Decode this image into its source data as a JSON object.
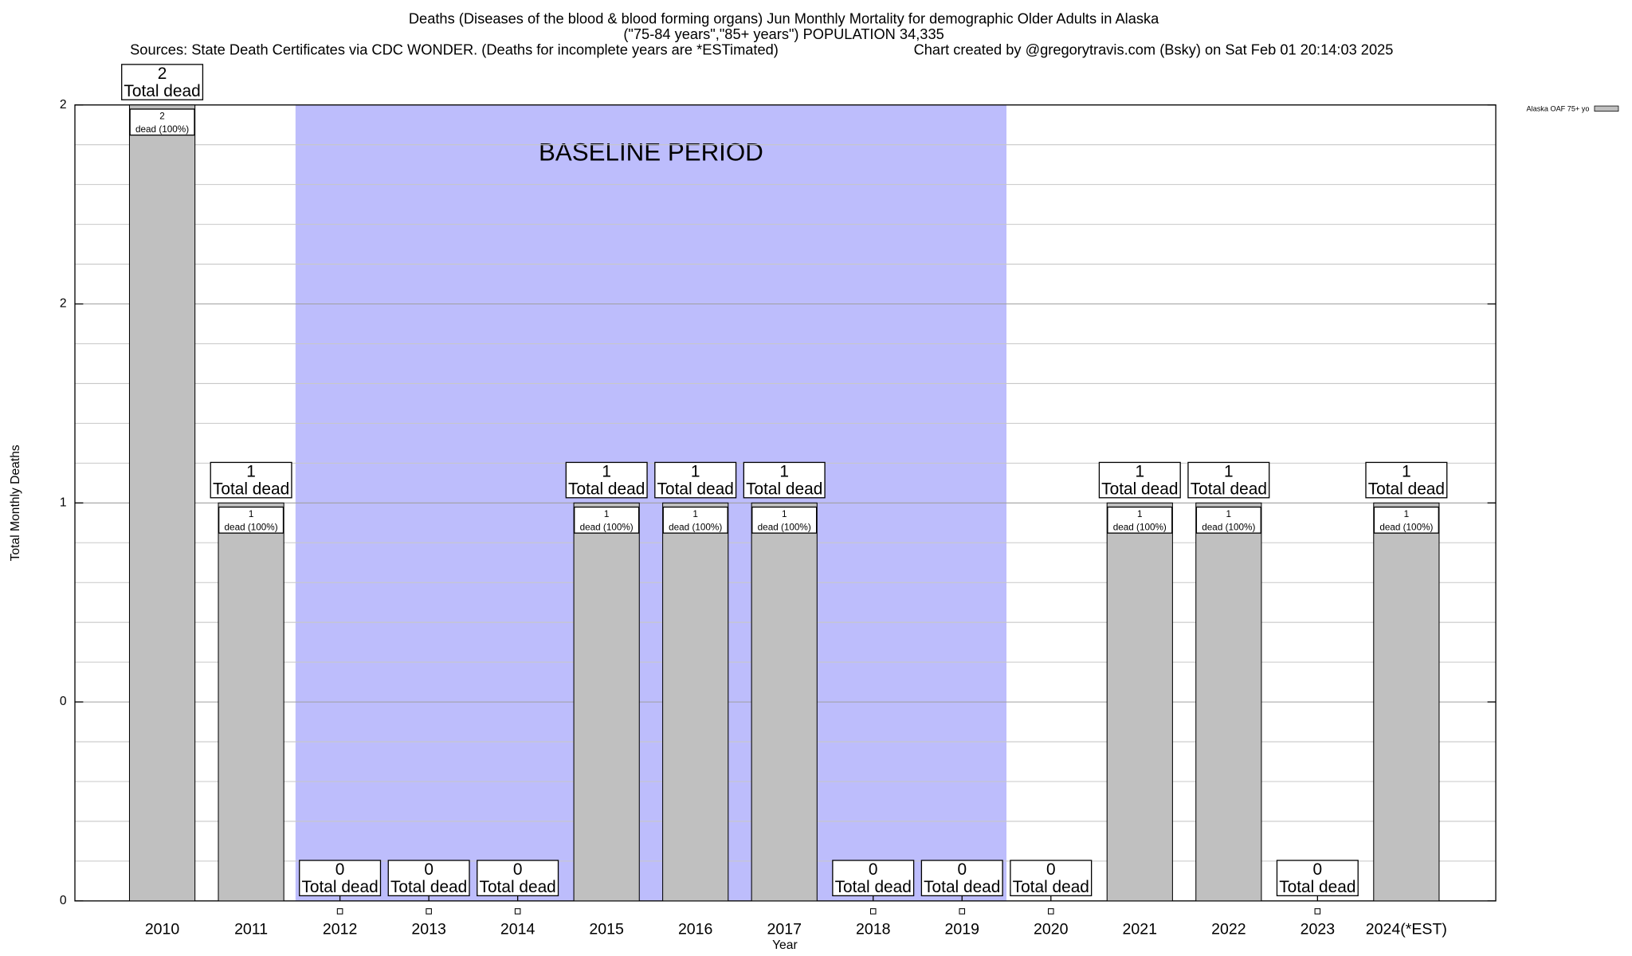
{
  "chart_data": {
    "type": "bar",
    "title": "Deaths (Diseases of the blood & blood forming organs) Jun Monthly Mortality for demographic Older Adults in Alaska",
    "subtitle": "(\"75-84 years\",\"85+ years\") POPULATION 34,335",
    "source": "Sources: State Death Certificates via CDC WONDER. (Deaths for incomplete years are *ESTimated)",
    "credit": "Chart created by @gregorytravis.com (Bsky) on Sat Feb 01 20:14:03 2025",
    "x_label": "Year",
    "y_label": "Total Monthly Deaths",
    "categories": [
      "2010",
      "2011",
      "2012",
      "2013",
      "2014",
      "2015",
      "2016",
      "2017",
      "2018",
      "2019",
      "2020",
      "2021",
      "2022",
      "2023",
      "2024(*EST)"
    ],
    "series": [
      {
        "name": "Alaska OAF 75+ yo",
        "color": "#c0c0c0",
        "values": [
          2,
          1,
          0,
          0,
          0,
          1,
          1,
          1,
          0,
          0,
          0,
          1,
          1,
          0,
          1
        ]
      }
    ],
    "total_label": "Total dead",
    "share_label": "dead (100%)",
    "baseline": {
      "label": "BASELINE PERIOD",
      "start": "2012",
      "end": "2019",
      "color": "#bdbdfc"
    },
    "ylim": [
      0,
      2
    ],
    "yticks": [
      0,
      {
        "value": 0.5,
        "label": "0"
      },
      1,
      {
        "value": 1.5,
        "label": "2"
      },
      2
    ],
    "minor_yticks": [
      0.1,
      0.2,
      0.3,
      0.4,
      0.6,
      0.7,
      0.8,
      0.9,
      1.1,
      1.2,
      1.3,
      1.4,
      1.6,
      1.7,
      1.8,
      1.9
    ],
    "grid": true,
    "legend": "top-right"
  }
}
